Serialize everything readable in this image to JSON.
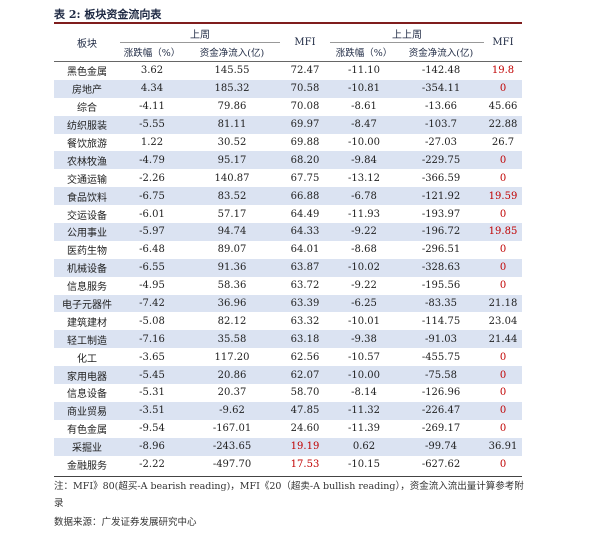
{
  "title": "表 2: 板块资金流向表",
  "headers": {
    "sector": "板块",
    "group1": "上周",
    "mfi1": "MFI",
    "group2": "上上周",
    "mfi2": "MFI",
    "sub_change1": "涨跌幅（%）",
    "sub_flow1": "资金净流入(亿)",
    "sub_change2": "涨跌幅（%）",
    "sub_flow2": "资金净流入(亿)"
  },
  "rows": [
    {
      "name": "黑色金属",
      "c1": "3.62",
      "f1": "145.55",
      "m1": "72.47",
      "c2": "-11.10",
      "f2": "-142.48",
      "m2": "19.8"
    },
    {
      "name": "房地产",
      "c1": "4.34",
      "f1": "185.32",
      "m1": "70.58",
      "c2": "-10.81",
      "f2": "-354.11",
      "m2": "0"
    },
    {
      "name": "综合",
      "c1": "-4.11",
      "f1": "79.86",
      "m1": "70.08",
      "c2": "-8.61",
      "f2": "-13.66",
      "m2": "45.66"
    },
    {
      "name": "纺织服装",
      "c1": "-5.55",
      "f1": "81.11",
      "m1": "69.97",
      "c2": "-8.47",
      "f2": "-103.7",
      "m2": "22.88"
    },
    {
      "name": "餐饮旅游",
      "c1": "1.22",
      "f1": "30.52",
      "m1": "69.88",
      "c2": "-10.00",
      "f2": "-27.03",
      "m2": "26.7"
    },
    {
      "name": "农林牧渔",
      "c1": "-4.79",
      "f1": "95.17",
      "m1": "68.20",
      "c2": "-9.84",
      "f2": "-229.75",
      "m2": "0"
    },
    {
      "name": "交通运输",
      "c1": "-2.26",
      "f1": "140.87",
      "m1": "67.75",
      "c2": "-13.12",
      "f2": "-366.59",
      "m2": "0"
    },
    {
      "name": "食品饮料",
      "c1": "-6.75",
      "f1": "83.52",
      "m1": "66.88",
      "c2": "-6.78",
      "f2": "-121.92",
      "m2": "19.59"
    },
    {
      "name": "交运设备",
      "c1": "-6.01",
      "f1": "57.17",
      "m1": "64.49",
      "c2": "-11.93",
      "f2": "-193.97",
      "m2": "0"
    },
    {
      "name": "公用事业",
      "c1": "-5.97",
      "f1": "94.74",
      "m1": "64.33",
      "c2": "-9.22",
      "f2": "-196.72",
      "m2": "19.85"
    },
    {
      "name": "医药生物",
      "c1": "-6.48",
      "f1": "89.07",
      "m1": "64.01",
      "c2": "-8.68",
      "f2": "-296.51",
      "m2": "0"
    },
    {
      "name": "机械设备",
      "c1": "-6.55",
      "f1": "91.36",
      "m1": "63.87",
      "c2": "-10.02",
      "f2": "-328.63",
      "m2": "0"
    },
    {
      "name": "信息服务",
      "c1": "-4.95",
      "f1": "58.36",
      "m1": "63.72",
      "c2": "-9.22",
      "f2": "-195.56",
      "m2": "0"
    },
    {
      "name": "电子元器件",
      "c1": "-7.42",
      "f1": "36.96",
      "m1": "63.39",
      "c2": "-6.25",
      "f2": "-83.35",
      "m2": "21.18"
    },
    {
      "name": "建筑建材",
      "c1": "-5.08",
      "f1": "82.12",
      "m1": "63.32",
      "c2": "-10.01",
      "f2": "-114.75",
      "m2": "23.04"
    },
    {
      "name": "轻工制造",
      "c1": "-7.16",
      "f1": "35.58",
      "m1": "63.18",
      "c2": "-9.38",
      "f2": "-91.03",
      "m2": "21.44"
    },
    {
      "name": "化工",
      "c1": "-3.65",
      "f1": "117.20",
      "m1": "62.56",
      "c2": "-10.57",
      "f2": "-455.75",
      "m2": "0"
    },
    {
      "name": "家用电器",
      "c1": "-5.45",
      "f1": "20.86",
      "m1": "62.07",
      "c2": "-10.00",
      "f2": "-75.58",
      "m2": "0"
    },
    {
      "name": "信息设备",
      "c1": "-5.31",
      "f1": "20.37",
      "m1": "58.70",
      "c2": "-8.14",
      "f2": "-126.96",
      "m2": "0"
    },
    {
      "name": "商业贸易",
      "c1": "-3.51",
      "f1": "-9.62",
      "m1": "47.85",
      "c2": "-11.32",
      "f2": "-226.47",
      "m2": "0"
    },
    {
      "name": "有色金属",
      "c1": "-9.54",
      "f1": "-167.01",
      "m1": "24.60",
      "c2": "-11.39",
      "f2": "-269.17",
      "m2": "0"
    },
    {
      "name": "采掘业",
      "c1": "-8.96",
      "f1": "-243.65",
      "m1": "19.19",
      "c2": "0.62",
      "f2": "-99.74",
      "m2": "36.91"
    },
    {
      "name": "金融服务",
      "c1": "-2.22",
      "f1": "-497.70",
      "m1": "17.53",
      "c2": "-10.15",
      "f2": "-627.62",
      "m2": "0"
    }
  ],
  "note": "注：MFI》80(超买-A bearish reading)，MFI《20（超卖-A bullish reading），资金流入流出量计算参考附录",
  "source": "数据来源：广发证券发展研究中心",
  "colors": {
    "accent_red": "#c00000",
    "stripe": "#dbe3f2",
    "top_rule": "#7f1d1d"
  }
}
